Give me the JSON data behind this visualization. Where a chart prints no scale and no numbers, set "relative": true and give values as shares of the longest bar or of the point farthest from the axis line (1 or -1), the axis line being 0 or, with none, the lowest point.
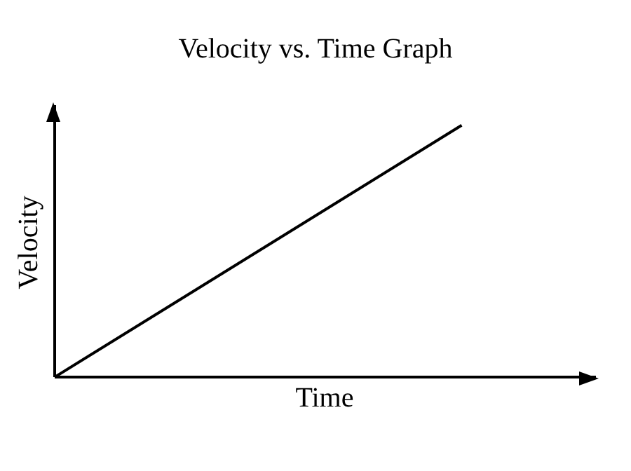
{
  "chart_data": {
    "type": "line",
    "title": "Velocity vs. Time Graph",
    "xlabel": "Time",
    "ylabel": "Velocity",
    "relative": true,
    "categories": [
      null,
      null
    ],
    "series": [
      {
        "color": "#000000",
        "values": [
          0,
          1
        ]
      }
    ],
    "grid": false,
    "legend": false,
    "marker": "none",
    "line_style": "solid"
  }
}
